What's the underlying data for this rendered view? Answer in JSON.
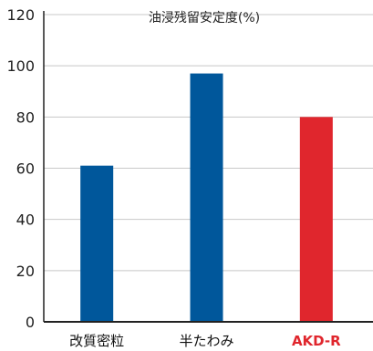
{
  "chart_data": {
    "type": "bar",
    "title": "油浸残留安定度(%)",
    "categories": [
      "改質密粒",
      "半たわみ",
      "AKD-R"
    ],
    "values": [
      61,
      97,
      80
    ],
    "ylim": [
      0,
      120
    ],
    "yticks": [
      0,
      20,
      40,
      60,
      80,
      100,
      120
    ],
    "xlabel": "",
    "ylabel": "",
    "grid": true,
    "bar_colors": [
      "#00579b",
      "#00579b",
      "#e0262d"
    ],
    "highlight_category": "AKD-R",
    "highlight_color": "#e0262d",
    "grid_color": "#c8c8c8",
    "axis_color": "#222222"
  }
}
